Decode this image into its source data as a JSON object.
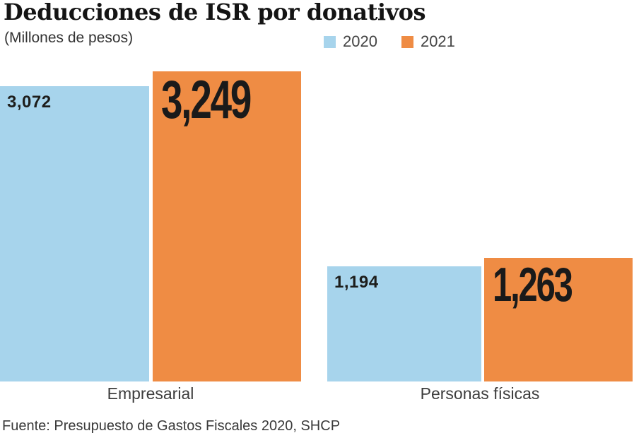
{
  "chart_data": {
    "type": "bar",
    "title": "Deducciones de ISR por donativos",
    "subtitle": "(Millones de pesos)",
    "categories": [
      "Empresarial",
      "Personas físicas"
    ],
    "series": [
      {
        "name": "2020",
        "color": "#a7d4ec",
        "values": [
          3072,
          1194
        ],
        "labels": [
          "3,072",
          "1,194"
        ]
      },
      {
        "name": "2021",
        "color": "#ef8c44",
        "values": [
          3249,
          1263
        ],
        "labels": [
          "3,249",
          "1,263"
        ]
      }
    ],
    "legend": [
      {
        "label": "2020",
        "color": "#a7d4ec"
      },
      {
        "label": "2021",
        "color": "#ef8c44"
      }
    ],
    "legend_position": "top",
    "grid": false,
    "axes_visible": false,
    "ylim": [
      0,
      3249
    ],
    "baseline": 0,
    "source": "Fuente: Presupuesto de Gastos Fiscales 2020, SHCP"
  }
}
